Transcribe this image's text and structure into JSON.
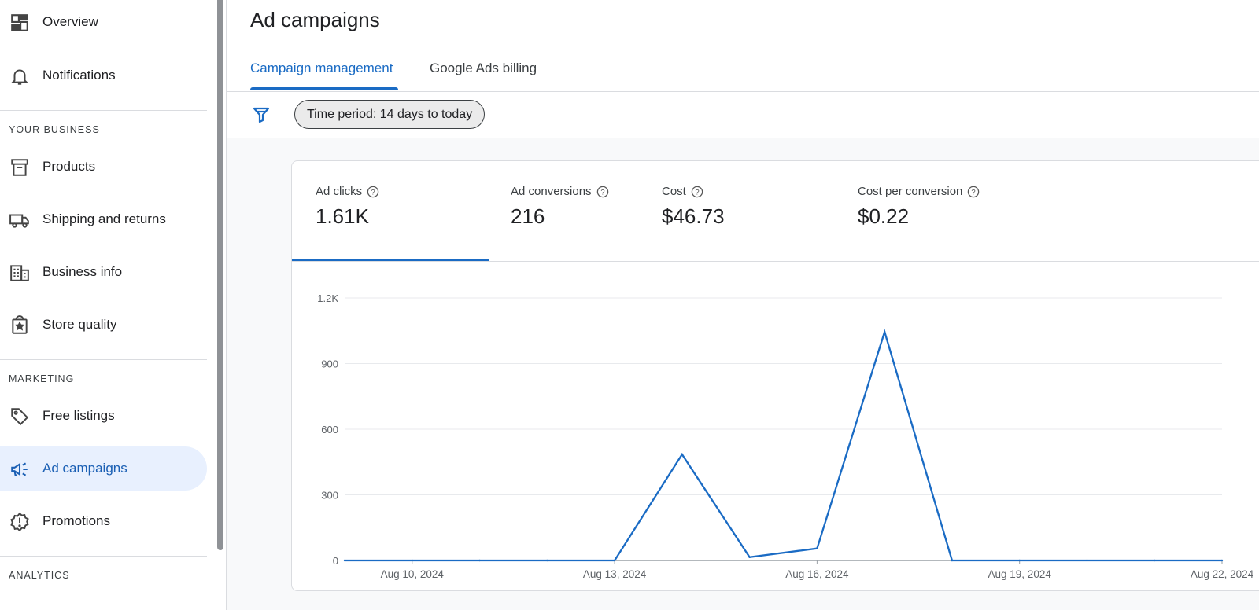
{
  "sidebar": {
    "items_top": [
      {
        "label": "Overview",
        "icon": "dashboard-icon"
      },
      {
        "label": "Notifications",
        "icon": "bell-icon"
      }
    ],
    "sections": [
      {
        "heading": "YOUR BUSINESS",
        "items": [
          {
            "label": "Products",
            "icon": "archive-icon"
          },
          {
            "label": "Shipping and returns",
            "icon": "truck-icon"
          },
          {
            "label": "Business info",
            "icon": "building-icon"
          },
          {
            "label": "Store quality",
            "icon": "badge-icon"
          }
        ]
      },
      {
        "heading": "MARKETING",
        "items": [
          {
            "label": "Free listings",
            "icon": "tag-icon"
          },
          {
            "label": "Ad campaigns",
            "icon": "megaphone-icon",
            "active": true
          },
          {
            "label": "Promotions",
            "icon": "alert-badge-icon"
          }
        ]
      },
      {
        "heading": "ANALYTICS",
        "items": []
      }
    ]
  },
  "main": {
    "title": "Ad campaigns",
    "tabs": [
      {
        "label": "Campaign management",
        "active": true
      },
      {
        "label": "Google Ads billing",
        "active": false
      }
    ],
    "filter": {
      "icon": "filter-icon",
      "chip_label": "Time period: 14 days to today"
    }
  },
  "metrics": [
    {
      "name": "Ad clicks",
      "value": "1.61K",
      "selected": true
    },
    {
      "name": "Ad conversions",
      "value": "216"
    },
    {
      "name": "Cost",
      "value": "$46.73"
    },
    {
      "name": "Cost per conversion",
      "value": "$0.22"
    }
  ],
  "colors": {
    "accent": "#1a6bc4",
    "active_bg": "#e8f0fe"
  },
  "chart_data": {
    "type": "line",
    "x": [
      "Aug 9, 2024",
      "Aug 10, 2024",
      "Aug 11, 2024",
      "Aug 12, 2024",
      "Aug 13, 2024",
      "Aug 14, 2024",
      "Aug 15, 2024",
      "Aug 16, 2024",
      "Aug 17, 2024",
      "Aug 18, 2024",
      "Aug 19, 2024",
      "Aug 20, 2024",
      "Aug 21, 2024",
      "Aug 22, 2024"
    ],
    "x_tick_labels": [
      "Aug 10, 2024",
      "Aug 13, 2024",
      "Aug 16, 2024",
      "Aug 19, 2024",
      "Aug 22, 2024"
    ],
    "series": [
      {
        "values": [
          0,
          0,
          0,
          0,
          0,
          485,
          15,
          55,
          1045,
          0,
          0,
          0,
          0,
          0
        ]
      }
    ],
    "y_ticks": [
      "0",
      "300",
      "600",
      "900",
      "1.2K"
    ],
    "ylim": [
      0,
      1200
    ],
    "grid": true,
    "color": "#1a6bc4"
  }
}
